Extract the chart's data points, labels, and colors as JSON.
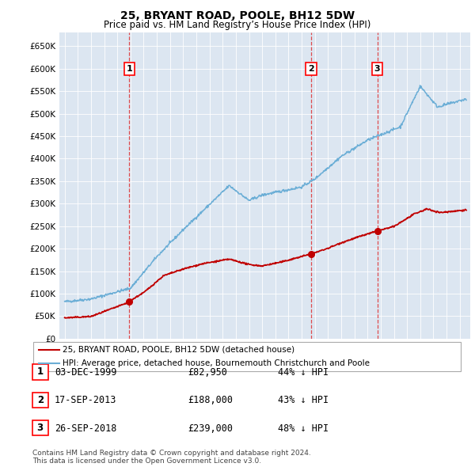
{
  "title": "25, BRYANT ROAD, POOLE, BH12 5DW",
  "subtitle": "Price paid vs. HM Land Registry’s House Price Index (HPI)",
  "ylim": [
    0,
    680000
  ],
  "yticks": [
    0,
    50000,
    100000,
    150000,
    200000,
    250000,
    300000,
    350000,
    400000,
    450000,
    500000,
    550000,
    600000,
    650000
  ],
  "ytick_labels": [
    "£0",
    "£50K",
    "£100K",
    "£150K",
    "£200K",
    "£250K",
    "£300K",
    "£350K",
    "£400K",
    "£450K",
    "£500K",
    "£550K",
    "£600K",
    "£650K"
  ],
  "hpi_color": "#6baed6",
  "price_color": "#c00000",
  "dashed_color": "#e03030",
  "background_color": "#dce6f1",
  "xlim_left": 1994.6,
  "xlim_right": 2025.8,
  "transactions": [
    {
      "price": 82950,
      "label": "1",
      "x_year": 1999.92
    },
    {
      "price": 188000,
      "label": "2",
      "x_year": 2013.71
    },
    {
      "price": 239000,
      "label": "3",
      "x_year": 2018.74
    }
  ],
  "table_rows": [
    {
      "num": "1",
      "date": "03-DEC-1999",
      "price": "£82,950",
      "note": "44% ↓ HPI"
    },
    {
      "num": "2",
      "date": "17-SEP-2013",
      "price": "£188,000",
      "note": "43% ↓ HPI"
    },
    {
      "num": "3",
      "date": "26-SEP-2018",
      "price": "£239,000",
      "note": "48% ↓ HPI"
    }
  ],
  "legend_line1": "25, BRYANT ROAD, POOLE, BH12 5DW (detached house)",
  "legend_line2": "HPI: Average price, detached house, Bournemouth Christchurch and Poole",
  "footnote": "Contains HM Land Registry data © Crown copyright and database right 2024.\nThis data is licensed under the Open Government Licence v3.0."
}
